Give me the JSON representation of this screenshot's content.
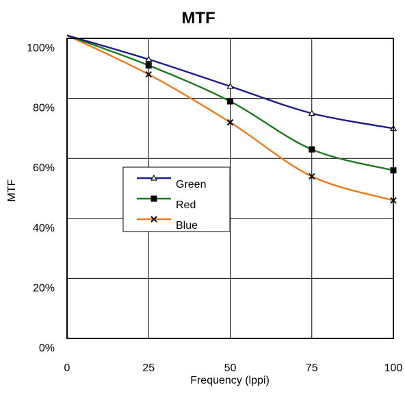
{
  "chart_data": {
    "type": "line",
    "title": "MTF",
    "xlabel": "Frequency (lppi)",
    "ylabel": "MTF",
    "x": [
      0,
      25,
      50,
      75,
      100
    ],
    "xlim": [
      0,
      100
    ],
    "ylim": [
      0,
      100
    ],
    "x_ticks": [
      "0",
      "25",
      "50",
      "75",
      "100"
    ],
    "y_ticks": [
      "0%",
      "20%",
      "40%",
      "60%",
      "80%",
      "100%"
    ],
    "grid": true,
    "legend_position": "center-left",
    "series": [
      {
        "name": "Green",
        "values": [
          101,
          93,
          84,
          75,
          70
        ],
        "color": "#1c1c8c",
        "marker": "triangle"
      },
      {
        "name": "Red",
        "values": [
          101,
          91,
          79,
          63,
          56
        ],
        "color": "#1a7a1a",
        "marker": "square"
      },
      {
        "name": "Blue",
        "values": [
          101,
          88,
          72,
          54,
          46
        ],
        "color": "#f07818",
        "marker": "x"
      }
    ]
  }
}
